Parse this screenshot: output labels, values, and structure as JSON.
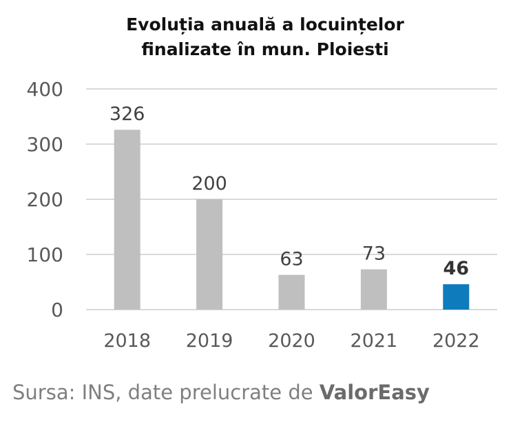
{
  "chart_data": {
    "type": "bar",
    "title_line1": "Evoluția anuală a locuințelor",
    "title_line2": "finalizate în mun. Ploiesti",
    "categories": [
      "2018",
      "2019",
      "2020",
      "2021",
      "2022"
    ],
    "values": [
      326,
      200,
      63,
      73,
      46
    ],
    "ylim": [
      0,
      400
    ],
    "yticks": [
      0,
      100,
      200,
      300,
      400
    ],
    "grid": true,
    "colors": {
      "default": "#bfbfbf",
      "highlight": "#0e7bbd"
    },
    "highlight_index": 4
  },
  "source": {
    "prefix": "Sursa: INS, date prelucrate de ",
    "brand": "ValorEasy"
  }
}
